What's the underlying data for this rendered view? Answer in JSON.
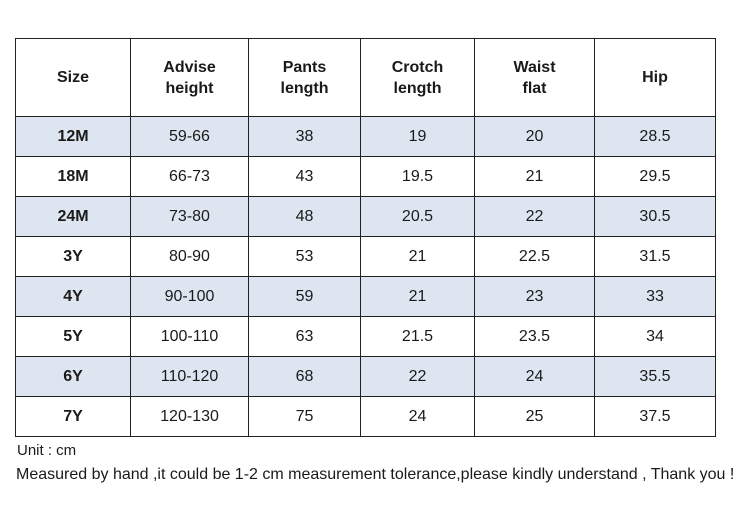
{
  "headers": [
    {
      "line1": "Size",
      "line2": ""
    },
    {
      "line1": "Advise",
      "line2": "height"
    },
    {
      "line1": "Pants",
      "line2": "length"
    },
    {
      "line1": "Crotch",
      "line2": "length"
    },
    {
      "line1": "Waist",
      "line2": "flat"
    },
    {
      "line1": "Hip",
      "line2": ""
    }
  ],
  "rows": [
    {
      "size": "12M",
      "height": "59-66",
      "pants": "38",
      "crotch": "19",
      "waist": "20",
      "hip": "28.5"
    },
    {
      "size": "18M",
      "height": "66-73",
      "pants": "43",
      "crotch": "19.5",
      "waist": "21",
      "hip": "29.5"
    },
    {
      "size": "24M",
      "height": "73-80",
      "pants": "48",
      "crotch": "20.5",
      "waist": "22",
      "hip": "30.5"
    },
    {
      "size": "3Y",
      "height": "80-90",
      "pants": "53",
      "crotch": "21",
      "waist": "22.5",
      "hip": "31.5"
    },
    {
      "size": "4Y",
      "height": "90-100",
      "pants": "59",
      "crotch": "21",
      "waist": "23",
      "hip": "33"
    },
    {
      "size": "5Y",
      "height": "100-110",
      "pants": "63",
      "crotch": "21.5",
      "waist": "23.5",
      "hip": "34"
    },
    {
      "size": "6Y",
      "height": "110-120",
      "pants": "68",
      "crotch": "22",
      "waist": "24",
      "hip": "35.5"
    },
    {
      "size": "7Y",
      "height": "120-130",
      "pants": "75",
      "crotch": "24",
      "waist": "25",
      "hip": "37.5"
    }
  ],
  "notes": {
    "unit": "Unit : cm",
    "measurement": "Measured by hand ,it could be 1-2 cm measurement tolerance,please kindly understand , Thank you !"
  },
  "colors": {
    "shaded_row": "#dde6f0",
    "border": "#222222"
  }
}
